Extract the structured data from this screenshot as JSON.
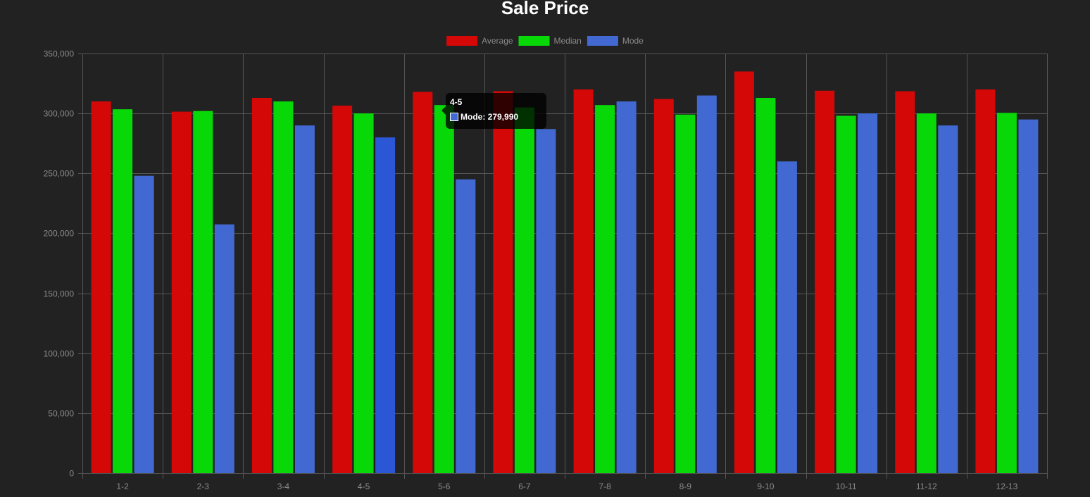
{
  "chart_data": {
    "type": "bar",
    "title": "Sale Price",
    "categories": [
      "1-2",
      "2-3",
      "3-4",
      "4-5",
      "5-6",
      "6-7",
      "7-8",
      "8-9",
      "9-10",
      "10-11",
      "11-12",
      "12-13"
    ],
    "series": [
      {
        "name": "Average",
        "color": "#d50808",
        "values": [
          310000,
          301500,
          313000,
          306500,
          318000,
          318500,
          320000,
          312000,
          335000,
          319000,
          318500,
          320000
        ]
      },
      {
        "name": "Median",
        "color": "#08d808",
        "values": [
          303500,
          302000,
          310000,
          300000,
          307000,
          305000,
          307000,
          299000,
          313000,
          298000,
          300000,
          300500
        ]
      },
      {
        "name": "Mode",
        "color": "#4169d1",
        "values": [
          248000,
          207500,
          290000,
          279990,
          245000,
          287000,
          310000,
          315000,
          260000,
          300000,
          290000,
          295000
        ]
      }
    ],
    "ylim": [
      0,
      350000
    ],
    "yticks": [
      0,
      50000,
      100000,
      150000,
      200000,
      250000,
      300000,
      350000
    ],
    "ytick_labels": [
      "0",
      "50,000",
      "100,000",
      "150,000",
      "200,000",
      "250,000",
      "300,000",
      "350,000"
    ],
    "grid": true,
    "legend_position": "top-center",
    "highlight": {
      "category_index": 3,
      "series_index": 2,
      "highlight_color": "#2b57d6"
    }
  },
  "tooltip": {
    "title": "4-5",
    "body": "Mode: 279,990",
    "swatch_color": "#4169d1"
  },
  "colors": {
    "background": "#222222",
    "grid": "#555555",
    "tick_text": "#8a8a8a",
    "title": "#ffffff"
  }
}
